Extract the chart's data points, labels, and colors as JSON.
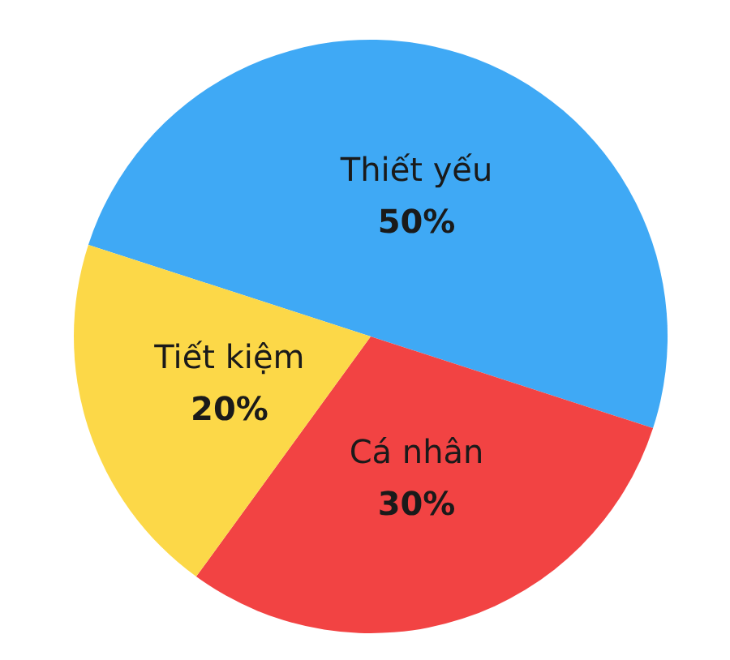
{
  "chart_data": {
    "type": "pie",
    "categories": [
      "Thiết yếu",
      "Cá nhân",
      "Tiết kiệm"
    ],
    "values": [
      50,
      30,
      20
    ],
    "colors": [
      "#3fa9f5",
      "#f24343",
      "#fcd848"
    ],
    "value_labels": [
      "50%",
      "30%",
      "20%"
    ]
  }
}
